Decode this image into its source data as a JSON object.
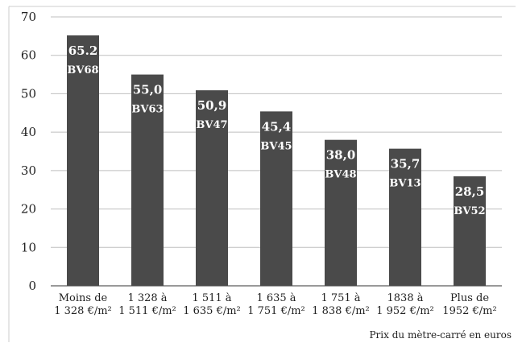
{
  "chart_data": {
    "type": "bar",
    "categories": [
      [
        "Moins de",
        "1 328 €/m²"
      ],
      [
        "1 328 à",
        "1 511 €/m²"
      ],
      [
        "1 511 à",
        "1 635 €/m²"
      ],
      [
        "1 635 à",
        "1 751 €/m²"
      ],
      [
        "1 751 à",
        "1 838 €/m²"
      ],
      [
        "1838 à",
        "1 952 €/m²"
      ],
      [
        "Plus de",
        "1952 €/m²"
      ]
    ],
    "values": [
      65.2,
      55.0,
      50.9,
      45.4,
      38.0,
      35.7,
      28.5
    ],
    "value_labels": [
      "65.2",
      "55,0",
      "50,9",
      "45,4",
      "38,0",
      "35,7",
      "28,5"
    ],
    "bar_labels": [
      "BV68",
      "BV63",
      "BV47",
      "BV45",
      "BV48",
      "BV13",
      "BV52"
    ],
    "yticks": [
      0,
      10,
      20,
      30,
      40,
      50,
      60,
      70
    ],
    "ylim": [
      0,
      70
    ],
    "grid": true,
    "bar_color": "#4a4a4a",
    "grid_color": "#bfbfbf",
    "xlabel": "Prix du mètre-carré en euros",
    "ylabel": "",
    "title": ""
  }
}
